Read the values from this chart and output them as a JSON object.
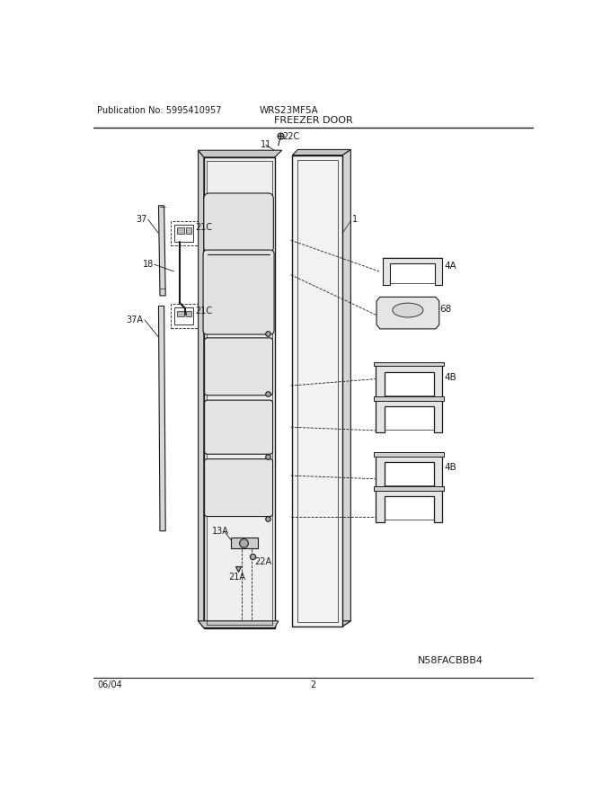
{
  "bg_color": "#ffffff",
  "line_color": "#1a1a1a",
  "pub_no": "Publication No: 5995410957",
  "model": "WRS23MF5A",
  "title": "FREEZER DOOR",
  "image_code": "N58FACBBB4",
  "date": "06/04",
  "page": "2"
}
